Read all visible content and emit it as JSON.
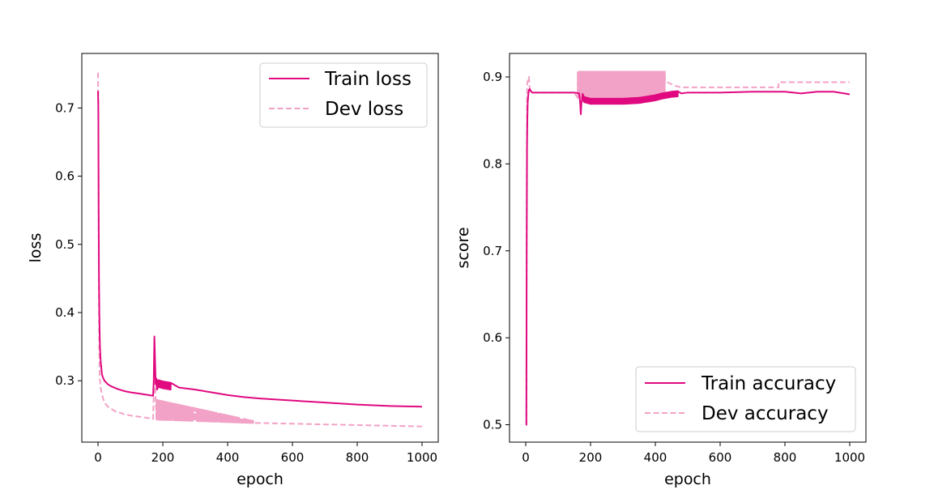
{
  "colors": {
    "train": "#e0097f",
    "dev": "#f2a2c6",
    "axis": "#000000"
  },
  "chart_data": [
    {
      "type": "line",
      "title": "",
      "xlabel": "epoch",
      "ylabel": "loss",
      "xlim": [
        -50,
        1050
      ],
      "ylim": [
        0.21,
        0.78
      ],
      "xticks": [
        0,
        200,
        400,
        600,
        800,
        1000
      ],
      "yticks": [
        0.3,
        0.4,
        0.5,
        0.6,
        0.7
      ],
      "xtick_labels": [
        "0",
        "200",
        "400",
        "600",
        "800",
        "1000"
      ],
      "ytick_labels": [
        "0.3",
        "0.4",
        "0.5",
        "0.6",
        "0.7"
      ],
      "legend_position": "top-right",
      "series": [
        {
          "name": "Train loss",
          "style": "solid",
          "x": [
            0,
            1,
            2,
            3,
            4,
            5,
            6,
            7,
            8,
            10,
            12,
            15,
            20,
            30,
            40,
            60,
            80,
            100,
            130,
            170,
            172,
            174,
            176,
            178,
            180,
            182,
            186,
            200,
            250,
            300,
            350,
            400,
            450,
            500,
            600,
            700,
            800,
            900,
            1000
          ],
          "y": [
            0.725,
            0.7,
            0.55,
            0.45,
            0.4,
            0.37,
            0.35,
            0.34,
            0.33,
            0.32,
            0.31,
            0.305,
            0.3,
            0.295,
            0.292,
            0.288,
            0.285,
            0.283,
            0.281,
            0.278,
            0.3,
            0.365,
            0.33,
            0.295,
            0.3,
            0.292,
            0.296,
            0.294,
            0.29,
            0.287,
            0.283,
            0.279,
            0.276,
            0.274,
            0.271,
            0.268,
            0.265,
            0.263,
            0.262
          ],
          "noise_band": {
            "x_start": 180,
            "x_end": 225,
            "amplitude": 0.005
          }
        },
        {
          "name": "Dev loss",
          "style": "dashed",
          "x": [
            0,
            1,
            2,
            3,
            4,
            5,
            6,
            8,
            10,
            15,
            20,
            30,
            50,
            80,
            100,
            130,
            160,
            170,
            172,
            174,
            176,
            178,
            180,
            200,
            300,
            400,
            480,
            500,
            600,
            700,
            800,
            900,
            1000
          ],
          "y": [
            0.752,
            0.7,
            0.5,
            0.4,
            0.34,
            0.31,
            0.3,
            0.29,
            0.285,
            0.275,
            0.268,
            0.262,
            0.256,
            0.251,
            0.249,
            0.247,
            0.245,
            0.244,
            0.28,
            0.36,
            0.3,
            0.27,
            0.255,
            0.252,
            0.246,
            0.241,
            0.238,
            0.238,
            0.237,
            0.236,
            0.235,
            0.234,
            0.233
          ],
          "noise_band": {
            "x_start": 180,
            "x_end": 480,
            "upper_start": 0.272,
            "upper_end": 0.241,
            "lower_start": 0.243,
            "lower_end": 0.238
          }
        }
      ]
    },
    {
      "type": "line",
      "title": "",
      "xlabel": "epoch",
      "ylabel": "score",
      "xlim": [
        -50,
        1050
      ],
      "ylim": [
        0.48,
        0.927
      ],
      "xticks": [
        0,
        200,
        400,
        600,
        800,
        1000
      ],
      "yticks": [
        0.5,
        0.6,
        0.7,
        0.8,
        0.9
      ],
      "xtick_labels": [
        "0",
        "200",
        "400",
        "600",
        "800",
        "1000"
      ],
      "ytick_labels": [
        "0.5",
        "0.6",
        "0.7",
        "0.8",
        "0.9"
      ],
      "legend_position": "bottom-right",
      "series": [
        {
          "name": "Train accuracy",
          "style": "solid",
          "x": [
            0,
            2,
            3,
            4,
            5,
            6,
            8,
            10,
            12,
            15,
            20,
            30,
            60,
            100,
            150,
            165,
            168,
            170,
            172,
            175,
            180,
            200,
            250,
            300,
            350,
            400,
            420,
            450,
            480,
            500,
            600,
            700,
            800,
            850,
            900,
            950,
            1000
          ],
          "y": [
            0.5,
            0.5,
            0.7,
            0.82,
            0.85,
            0.87,
            0.88,
            0.885,
            0.886,
            0.884,
            0.882,
            0.882,
            0.882,
            0.882,
            0.882,
            0.881,
            0.87,
            0.857,
            0.87,
            0.878,
            0.874,
            0.872,
            0.872,
            0.872,
            0.873,
            0.876,
            0.878,
            0.88,
            0.881,
            0.882,
            0.882,
            0.883,
            0.883,
            0.881,
            0.883,
            0.883,
            0.88
          ],
          "noise_band": {
            "x_start": 175,
            "x_end": 470,
            "amplitude": 0.003
          }
        },
        {
          "name": "Dev accuracy",
          "style": "dashed",
          "x": [
            0,
            2,
            3,
            4,
            5,
            6,
            8,
            10,
            12,
            15,
            20,
            30,
            60,
            100,
            150,
            165,
            170,
            175,
            180,
            300,
            350,
            400,
            430,
            460,
            480,
            500,
            600,
            700,
            780,
            781,
            900,
            1000
          ],
          "y": [
            0.5,
            0.5,
            0.75,
            0.88,
            0.893,
            0.895,
            0.897,
            0.9,
            0.888,
            0.885,
            0.882,
            0.882,
            0.882,
            0.882,
            0.882,
            0.882,
            0.895,
            0.905,
            0.9,
            0.9,
            0.905,
            0.9,
            0.895,
            0.89,
            0.888,
            0.888,
            0.888,
            0.888,
            0.888,
            0.894,
            0.894,
            0.894
          ],
          "noise_band": {
            "x_start": 160,
            "x_end": 430,
            "upper": 0.906,
            "lower": 0.876
          }
        }
      ]
    }
  ]
}
